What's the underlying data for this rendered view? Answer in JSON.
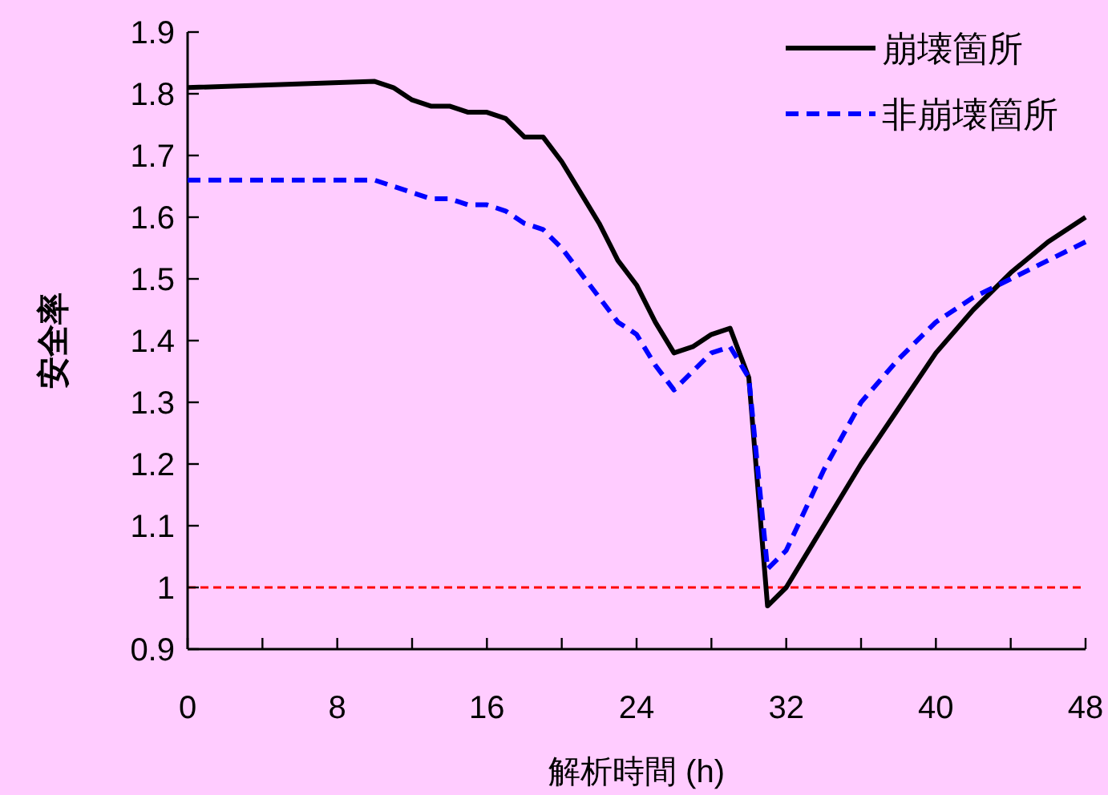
{
  "chart_data": {
    "type": "line",
    "xlabel": "解析時間 (h)",
    "ylabel": "安全率",
    "x": [
      0,
      10,
      11,
      12,
      13,
      14,
      15,
      16,
      17,
      18,
      19,
      20,
      22,
      23,
      24,
      25,
      26,
      27,
      28,
      29,
      30,
      31,
      32,
      34,
      36,
      38,
      40,
      42,
      44,
      46,
      48
    ],
    "series": [
      {
        "name": "崩壊箇所",
        "color": "#000000",
        "line_style": "solid",
        "values": [
          1.81,
          1.82,
          1.81,
          1.79,
          1.78,
          1.78,
          1.77,
          1.77,
          1.76,
          1.73,
          1.73,
          1.69,
          1.59,
          1.53,
          1.49,
          1.43,
          1.38,
          1.39,
          1.41,
          1.42,
          1.34,
          0.97,
          1.0,
          1.1,
          1.2,
          1.29,
          1.38,
          1.45,
          1.51,
          1.56,
          1.6
        ]
      },
      {
        "name": "非崩壊箇所",
        "color": "#0000ff",
        "line_style": "dashed",
        "values": [
          1.66,
          1.66,
          1.65,
          1.64,
          1.63,
          1.63,
          1.62,
          1.62,
          1.61,
          1.59,
          1.58,
          1.55,
          1.47,
          1.43,
          1.41,
          1.36,
          1.32,
          1.35,
          1.38,
          1.39,
          1.34,
          1.03,
          1.06,
          1.19,
          1.3,
          1.37,
          1.43,
          1.47,
          1.5,
          1.53,
          1.56
        ]
      }
    ],
    "xlim": [
      0,
      48
    ],
    "xticks": [
      0,
      {
        "value": 4,
        "label": null
      },
      8,
      {
        "value": 12,
        "label": null
      },
      16,
      {
        "value": 20,
        "label": null
      },
      24,
      {
        "value": 28,
        "label": null
      },
      32,
      {
        "value": 36,
        "label": null
      },
      40,
      {
        "value": 44,
        "label": null
      },
      48
    ],
    "ylim": [
      0.9,
      1.9
    ],
    "yticks": [
      0.9,
      1,
      1.1,
      1.2,
      1.3,
      1.4,
      1.5,
      1.6,
      1.7,
      1.8,
      1.9
    ],
    "ref_lines": [
      {
        "axis": "y",
        "value": 1,
        "label": null,
        "color": "#ff0000",
        "line_style": "dashed"
      }
    ],
    "grid": false,
    "legend": "top right"
  }
}
